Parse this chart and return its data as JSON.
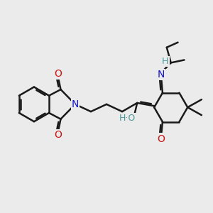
{
  "bg_color": "#ebebeb",
  "bond_color": "#1a1a1a",
  "bond_width": 1.8,
  "atom_colors": {
    "N": "#1515cc",
    "O": "#cc1515",
    "H": "#4a9999",
    "C": "#1a1a1a"
  },
  "font_size": 10
}
